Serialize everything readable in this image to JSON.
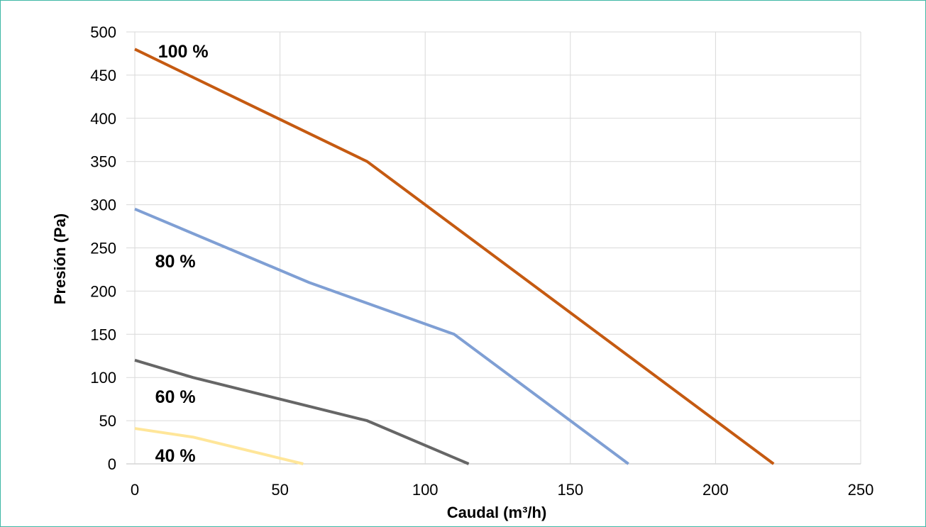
{
  "chart_data": {
    "type": "line",
    "xlabel": "Caudal (m³/h)",
    "ylabel": "Presión (Pa)",
    "xlim": [
      0,
      250
    ],
    "ylim": [
      0,
      500
    ],
    "xticks": [
      0,
      50,
      100,
      150,
      200,
      250
    ],
    "yticks": [
      0,
      50,
      100,
      150,
      200,
      250,
      300,
      350,
      400,
      450,
      500
    ],
    "grid": true,
    "legend": "none",
    "series": [
      {
        "name": "100 %",
        "color": "#c55a11",
        "x": [
          0,
          80,
          220
        ],
        "y": [
          480,
          350,
          0
        ],
        "label_pos": [
          8,
          478
        ]
      },
      {
        "name": "80 %",
        "color": "#7f9fd4",
        "x": [
          0,
          60,
          110,
          170
        ],
        "y": [
          295,
          210,
          150,
          0
        ],
        "label_pos": [
          7,
          235
        ]
      },
      {
        "name": "60 %",
        "color": "#666666",
        "x": [
          0,
          20,
          80,
          115
        ],
        "y": [
          120,
          100,
          50,
          0
        ],
        "label_pos": [
          7,
          78
        ]
      },
      {
        "name": "40 %",
        "color": "#ffe699",
        "x": [
          0,
          20,
          58
        ],
        "y": [
          41,
          31,
          0
        ],
        "label_pos": [
          7,
          10
        ]
      }
    ]
  }
}
